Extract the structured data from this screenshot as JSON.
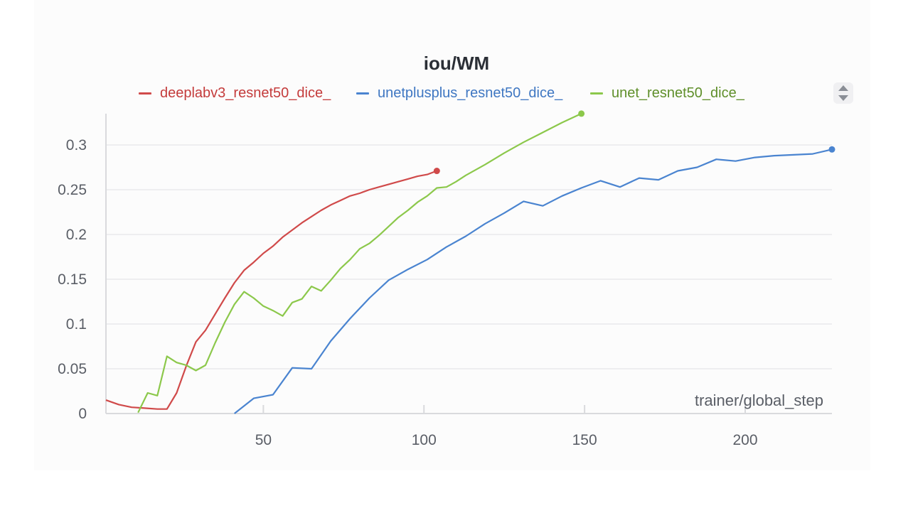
{
  "chart_data": {
    "type": "line",
    "title": "iou/WM",
    "xlabel": "trainer/global_step",
    "ylabel": "",
    "xlim": [
      1,
      227
    ],
    "ylim": [
      0,
      0.335
    ],
    "x_ticks": [
      50,
      100,
      150,
      200
    ],
    "x_tick_labels": [
      "50",
      "100",
      "150",
      "200"
    ],
    "y_ticks": [
      0,
      0.05,
      0.1,
      0.15,
      0.2,
      0.25,
      0.3
    ],
    "y_tick_labels": [
      "0",
      "0.05",
      "0.1",
      "0.15",
      "0.2",
      "0.25",
      "0.3"
    ],
    "grid": true,
    "legend_position": "top",
    "series": [
      {
        "name": "deeplabv3_resnet50_dice_",
        "color": "#d04a4a",
        "x": [
          1,
          5,
          9,
          13,
          17,
          20,
          23,
          26,
          29,
          32,
          35,
          38,
          41,
          44,
          47,
          50,
          53,
          56,
          59,
          62,
          65,
          68,
          71,
          74,
          77,
          80,
          83,
          86,
          89,
          92,
          95,
          98,
          101,
          104
        ],
        "y": [
          0.015,
          0.01,
          0.007,
          0.006,
          0.005,
          0.005,
          0.023,
          0.053,
          0.08,
          0.093,
          0.111,
          0.129,
          0.146,
          0.16,
          0.169,
          0.179,
          0.187,
          0.197,
          0.205,
          0.213,
          0.22,
          0.227,
          0.233,
          0.238,
          0.243,
          0.246,
          0.25,
          0.253,
          0.256,
          0.259,
          0.262,
          0.265,
          0.267,
          0.271
        ]
      },
      {
        "name": "unetplusplus_resnet50_dice_",
        "color": "#4a84d0",
        "x": [
          41,
          47,
          53,
          59,
          65,
          71,
          77,
          83,
          89,
          95,
          101,
          107,
          113,
          119,
          125,
          131,
          137,
          143,
          149,
          155,
          161,
          167,
          173,
          179,
          185,
          191,
          197,
          203,
          209,
          215,
          221,
          227
        ],
        "y": [
          0.0,
          0.017,
          0.021,
          0.051,
          0.05,
          0.081,
          0.106,
          0.129,
          0.149,
          0.161,
          0.172,
          0.186,
          0.198,
          0.212,
          0.224,
          0.237,
          0.232,
          0.243,
          0.252,
          0.26,
          0.253,
          0.263,
          0.261,
          0.271,
          0.275,
          0.284,
          0.282,
          0.286,
          0.288,
          0.289,
          0.29,
          0.295
        ]
      },
      {
        "name": "unet_resnet50_dice_",
        "color": "#8cc84b",
        "x": [
          11,
          14,
          17,
          20,
          23,
          26,
          29,
          32,
          35,
          38,
          41,
          44,
          47,
          50,
          53,
          56,
          59,
          62,
          65,
          68,
          71,
          74,
          77,
          80,
          83,
          86,
          89,
          92,
          95,
          98,
          101,
          104,
          107,
          110,
          113,
          119,
          125,
          131,
          137,
          143,
          149
        ],
        "y": [
          0.001,
          0.023,
          0.02,
          0.064,
          0.057,
          0.054,
          0.048,
          0.054,
          0.079,
          0.102,
          0.122,
          0.136,
          0.129,
          0.12,
          0.115,
          0.109,
          0.124,
          0.128,
          0.142,
          0.137,
          0.149,
          0.162,
          0.172,
          0.184,
          0.19,
          0.199,
          0.209,
          0.219,
          0.227,
          0.236,
          0.243,
          0.252,
          0.253,
          0.259,
          0.266,
          0.278,
          0.291,
          0.303,
          0.314,
          0.325,
          0.335
        ]
      }
    ]
  }
}
